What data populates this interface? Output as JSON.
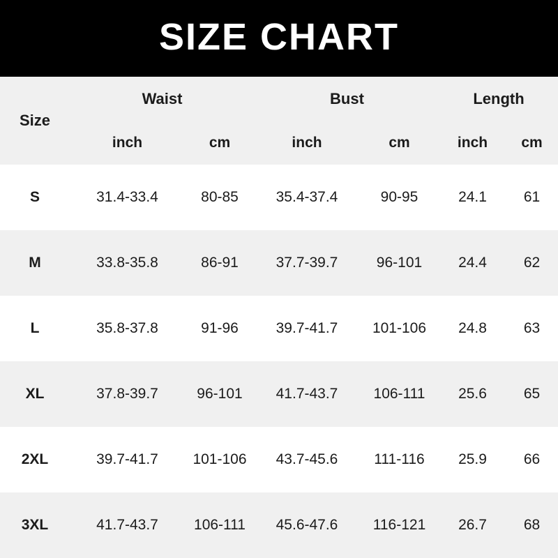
{
  "banner": {
    "title": "SIZE CHART"
  },
  "table": {
    "size_header": "Size",
    "groups": [
      {
        "label": "Waist",
        "units": [
          "inch",
          "cm"
        ]
      },
      {
        "label": "Bust",
        "units": [
          "inch",
          "cm"
        ]
      },
      {
        "label": "Length",
        "units": [
          "inch",
          "cm"
        ]
      }
    ],
    "rows": [
      {
        "size": "S",
        "waist_inch": "31.4-33.4",
        "waist_cm": "80-85",
        "bust_inch": "35.4-37.4",
        "bust_cm": "90-95",
        "length_inch": "24.1",
        "length_cm": "61"
      },
      {
        "size": "M",
        "waist_inch": "33.8-35.8",
        "waist_cm": "86-91",
        "bust_inch": "37.7-39.7",
        "bust_cm": "96-101",
        "length_inch": "24.4",
        "length_cm": "62"
      },
      {
        "size": "L",
        "waist_inch": "35.8-37.8",
        "waist_cm": "91-96",
        "bust_inch": "39.7-41.7",
        "bust_cm": "101-106",
        "length_inch": "24.8",
        "length_cm": "63"
      },
      {
        "size": "XL",
        "waist_inch": "37.8-39.7",
        "waist_cm": "96-101",
        "bust_inch": "41.7-43.7",
        "bust_cm": "106-111",
        "length_inch": "25.6",
        "length_cm": "65"
      },
      {
        "size": "2XL",
        "waist_inch": "39.7-41.7",
        "waist_cm": "101-106",
        "bust_inch": "43.7-45.6",
        "bust_cm": "111-116",
        "length_inch": "25.9",
        "length_cm": "66"
      },
      {
        "size": "3XL",
        "waist_inch": "41.7-43.7",
        "waist_cm": "106-111",
        "bust_inch": "45.6-47.6",
        "bust_cm": "116-121",
        "length_inch": "26.7",
        "length_cm": "68"
      }
    ]
  },
  "colors": {
    "banner_bg": "#000000",
    "banner_fg": "#ffffff",
    "stripe": "#f0f0f0",
    "row_bg": "#ffffff",
    "text": "#1b1b1b"
  },
  "chart_data": {
    "type": "table",
    "title": "SIZE CHART",
    "columns": [
      "Size",
      "Waist inch",
      "Waist cm",
      "Bust inch",
      "Bust cm",
      "Length inch",
      "Length cm"
    ],
    "rows": [
      [
        "S",
        "31.4-33.4",
        "80-85",
        "35.4-37.4",
        "90-95",
        "24.1",
        "61"
      ],
      [
        "M",
        "33.8-35.8",
        "86-91",
        "37.7-39.7",
        "96-101",
        "24.4",
        "62"
      ],
      [
        "L",
        "35.8-37.8",
        "91-96",
        "39.7-41.7",
        "101-106",
        "24.8",
        "63"
      ],
      [
        "XL",
        "37.8-39.7",
        "96-101",
        "41.7-43.7",
        "106-111",
        "25.6",
        "65"
      ],
      [
        "2XL",
        "39.7-41.7",
        "101-106",
        "43.7-45.6",
        "111-116",
        "25.9",
        "66"
      ],
      [
        "3XL",
        "41.7-43.7",
        "106-111",
        "45.6-47.6",
        "116-121",
        "26.7",
        "68"
      ]
    ]
  }
}
